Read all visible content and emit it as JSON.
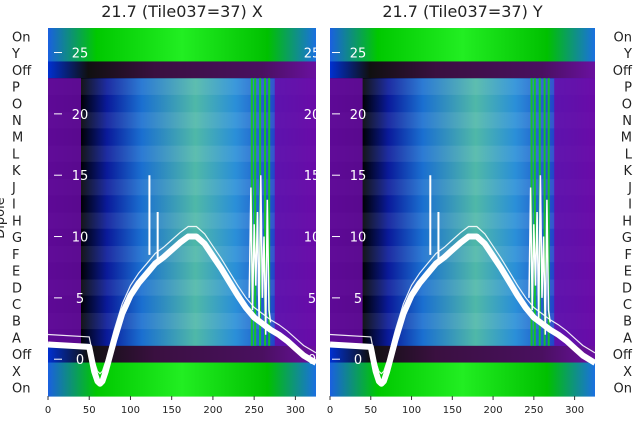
{
  "chart_data": [
    {
      "type": "heatmap",
      "title": "21.7 (Tile037=37) X",
      "ylabel": "Dipole",
      "row_labels": [
        "On",
        "Y",
        "Off",
        "P",
        "O",
        "N",
        "M",
        "L",
        "K",
        "J",
        "I",
        "H",
        "G",
        "F",
        "E",
        "D",
        "C",
        "B",
        "A",
        "Off",
        "X",
        "On"
      ],
      "x_ticks": [
        0,
        50,
        100,
        150,
        200,
        250,
        300
      ],
      "xlim": [
        0,
        325
      ],
      "overlay_ticks": [
        0,
        5,
        10,
        15,
        20,
        25
      ],
      "overlay_ylim": [
        -3,
        27
      ],
      "line_series": [
        {
          "x": [
            0,
            50,
            53,
            56,
            60,
            63,
            66,
            70,
            80,
            90,
            100,
            110,
            120,
            130,
            140,
            150,
            160,
            170,
            180,
            190,
            200,
            210,
            220,
            230,
            240,
            250,
            260,
            270,
            280,
            290,
            300,
            310,
            320,
            325
          ],
          "y": [
            1.2,
            1.0,
            0.0,
            -1.0,
            -1.8,
            -2.0,
            -1.8,
            -1.0,
            1.5,
            3.7,
            5.2,
            6.2,
            7.0,
            7.8,
            8.3,
            8.9,
            9.5,
            10.0,
            10.0,
            9.4,
            8.4,
            7.4,
            6.3,
            5.2,
            4.2,
            3.4,
            2.9,
            2.4,
            2.0,
            1.5,
            0.9,
            0.3,
            -0.1,
            -0.3
          ]
        },
        {
          "x": [
            244,
            246,
            248,
            250,
            252,
            254,
            256,
            258,
            260,
            262,
            264,
            266,
            268,
            270
          ],
          "y": [
            5.0,
            14.0,
            4.0,
            11.0,
            6.0,
            12.0,
            3.0,
            15.0,
            5.0,
            10.0,
            2.0,
            13.0,
            4.0,
            3.0
          ]
        }
      ],
      "spikes": [
        {
          "x": 123,
          "y_from": 8.5,
          "y_to": 15.0
        },
        {
          "x": 133,
          "y_from": 8.0,
          "y_to": 12.0
        }
      ]
    },
    {
      "type": "heatmap",
      "title": "21.7 (Tile037=37) Y",
      "ylabel": "",
      "row_labels": [
        "On",
        "Y",
        "Off",
        "P",
        "O",
        "N",
        "M",
        "L",
        "K",
        "J",
        "I",
        "H",
        "G",
        "F",
        "E",
        "D",
        "C",
        "B",
        "A",
        "Off",
        "X",
        "On"
      ],
      "x_ticks": [
        0,
        50,
        100,
        150,
        200,
        250,
        300
      ],
      "xlim": [
        0,
        325
      ],
      "overlay_ticks": [
        0,
        5,
        10,
        15,
        20,
        25
      ],
      "overlay_ylim": [
        -3,
        27
      ],
      "line_series": [
        {
          "x": [
            0,
            50,
            53,
            56,
            60,
            63,
            66,
            70,
            80,
            90,
            100,
            110,
            120,
            130,
            140,
            150,
            160,
            170,
            180,
            190,
            200,
            210,
            220,
            230,
            240,
            250,
            260,
            270,
            280,
            290,
            300,
            310,
            320,
            325
          ],
          "y": [
            1.2,
            1.0,
            0.0,
            -1.0,
            -1.8,
            -2.0,
            -1.8,
            -1.0,
            1.5,
            3.7,
            5.2,
            6.2,
            7.0,
            7.8,
            8.3,
            8.9,
            9.5,
            10.0,
            10.0,
            9.4,
            8.4,
            7.4,
            6.3,
            5.2,
            4.2,
            3.4,
            2.9,
            2.4,
            2.0,
            1.5,
            0.9,
            0.3,
            -0.1,
            -0.3
          ]
        },
        {
          "x": [
            244,
            246,
            248,
            250,
            252,
            254,
            256,
            258,
            260,
            262,
            264,
            266,
            268,
            270
          ],
          "y": [
            5.0,
            14.0,
            4.0,
            11.0,
            6.0,
            12.0,
            3.0,
            15.0,
            5.0,
            10.0,
            2.0,
            13.0,
            4.0,
            3.0
          ]
        }
      ],
      "spikes": [
        {
          "x": 123,
          "y_from": 8.5,
          "y_to": 15.0
        },
        {
          "x": 133,
          "y_from": 8.0,
          "y_to": 12.0
        }
      ]
    }
  ]
}
